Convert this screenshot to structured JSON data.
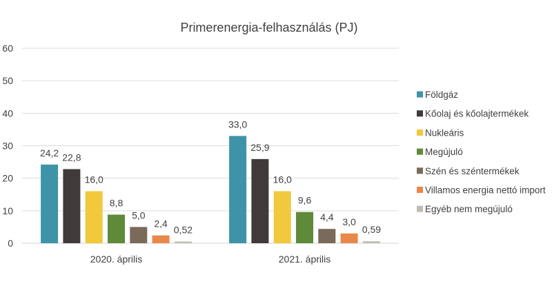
{
  "chart_data": {
    "type": "bar",
    "title": "Primerenergia-felhasználás (PJ)",
    "xlabel": "",
    "ylabel": "",
    "ylim": [
      0,
      60
    ],
    "yticks": [
      0,
      10,
      20,
      30,
      40,
      50,
      60
    ],
    "grid": true,
    "legend_position": "right",
    "categories": [
      "2020. április",
      "2021. április"
    ],
    "series": [
      {
        "name": "Földgáz",
        "color": "#3f93a8",
        "values": [
          24.2,
          33.0
        ],
        "labels": [
          "24,2",
          "33,0"
        ]
      },
      {
        "name": "Kőolaj és kőolajtermékek",
        "color": "#403a3a",
        "values": [
          22.8,
          25.9
        ],
        "labels": [
          "22,8",
          "25,9"
        ]
      },
      {
        "name": "Nukleáris",
        "color": "#f2c83c",
        "values": [
          16.0,
          16.0
        ],
        "labels": [
          "16,0",
          "16,0"
        ]
      },
      {
        "name": "Megújuló",
        "color": "#5f8a3a",
        "values": [
          8.8,
          9.6
        ],
        "labels": [
          "8,8",
          "9,6"
        ]
      },
      {
        "name": "Szén és széntermékek",
        "color": "#7a6a5a",
        "values": [
          5.0,
          4.4
        ],
        "labels": [
          "5,0",
          "4,4"
        ]
      },
      {
        "name": "Villamos energia nettó import",
        "color": "#e8884a",
        "values": [
          2.4,
          3.0
        ],
        "labels": [
          "2,4",
          "3,0"
        ]
      },
      {
        "name": "Egyéb nem megújuló",
        "color": "#c0bcb4",
        "values": [
          0.52,
          0.59
        ],
        "labels": [
          "0,52",
          "0,59"
        ]
      }
    ]
  }
}
